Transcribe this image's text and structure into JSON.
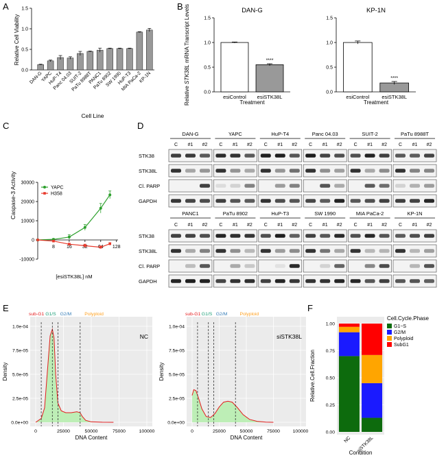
{
  "panels": {
    "A": {
      "letter": "A",
      "chart_data": {
        "type": "bar",
        "title": "",
        "xlabel": "Cell Line",
        "ylabel": "Relative Cell Viability",
        "ylim": [
          0,
          1.5
        ],
        "yticks": [
          "0.0",
          "0.5",
          "1.0",
          "1.5"
        ],
        "categories": [
          "DAN-G",
          "YAPC",
          "HuP-T4",
          "Panc 04.03",
          "SUIT-2",
          "PaTu 8988T",
          "PANC1",
          "PaTu 8902",
          "SW 1990",
          "HuP-T3",
          "MIA PaCa-2",
          "KP-1N"
        ],
        "values": [
          0.13,
          0.22,
          0.3,
          0.29,
          0.4,
          0.45,
          0.48,
          0.52,
          0.52,
          0.52,
          0.92,
          0.97
        ],
        "errors": [
          0.01,
          0.02,
          0.05,
          0.03,
          0.05,
          0.01,
          0.05,
          0.01,
          0.01,
          0.01,
          0.01,
          0.04
        ],
        "bar_color": "#999999"
      }
    },
    "B": {
      "letter": "B",
      "ylabel_pre": "Relative ",
      "ylabel_gene": "STK38L",
      "ylabel_post": " mRNA Transcript Levels",
      "chart_data": [
        {
          "type": "bar",
          "title": "DAN-G",
          "xlabel": "Treatment",
          "ylim": [
            0,
            1.5
          ],
          "yticks": [
            "0.0",
            "0.5",
            "1.0",
            "1.5"
          ],
          "categories": [
            "esiControl",
            "esiSTK38L"
          ],
          "values": [
            1.0,
            0.55
          ],
          "errors": [
            0.01,
            0.02
          ],
          "colors": [
            "#ffffff",
            "#999999"
          ],
          "annotation": "****"
        },
        {
          "type": "bar",
          "title": "KP-1N",
          "xlabel": "Treatment",
          "ylim": [
            0,
            1.5
          ],
          "yticks": [
            "0.0",
            "0.5",
            "1.0",
            "1.5"
          ],
          "categories": [
            "esiControl",
            "esiSTK38L"
          ],
          "values": [
            1.0,
            0.18
          ],
          "errors": [
            0.03,
            0.03
          ],
          "colors": [
            "#ffffff",
            "#999999"
          ],
          "annotation": "****"
        }
      ]
    },
    "C": {
      "letter": "C",
      "chart_data": {
        "type": "line",
        "xlabel": "[esiSTK38L] nM",
        "ylabel": "Caspase-3 Activity",
        "ylim": [
          -10000,
          30000
        ],
        "yticks": [
          "-10000",
          "0",
          "10000",
          "20000",
          "30000"
        ],
        "xticks": [
          "8",
          "16",
          "32",
          "64",
          "128"
        ],
        "x": [
          4,
          8,
          16,
          32,
          64,
          96
        ],
        "series": [
          {
            "name": "YAPC",
            "color": "#2ca02c",
            "values": [
              0,
              300,
              1500,
              6500,
              16500,
              23500
            ],
            "errors": [
              0,
              400,
              1200,
              1500,
              2500,
              2000
            ]
          },
          {
            "name": "H358",
            "color": "#e8392b",
            "values": [
              0,
              -600,
              -2200,
              -3000,
              -3800,
              -2000
            ],
            "errors": [
              0,
              300,
              500,
              800,
              700,
              600
            ]
          }
        ]
      }
    },
    "D": {
      "letter": "D",
      "row_labels": [
        "STK38",
        "STK38L",
        "Cl. PARP",
        "GAPDH"
      ],
      "lane_labels": [
        "C",
        "#1",
        "#2"
      ],
      "top_lines": [
        "DAN-G",
        "YAPC",
        "HuP-T4",
        "Panc 04.03",
        "SUIT-2",
        "PaTu 8988T"
      ],
      "bottom_lines": [
        "PANC1",
        "PaTu 8902",
        "HuP-T3",
        "SW 1990",
        "MIA PaCa-2",
        "KP-1N"
      ]
    },
    "E": {
      "letter": "E",
      "chart_data": [
        {
          "type": "area",
          "label": "NC",
          "xlabel": "DNA Content",
          "ylabel": "Density",
          "xlim": [
            0,
            100000
          ],
          "ylim": [
            0,
            0.0001
          ],
          "xticks": [
            "0",
            "25000",
            "50000",
            "75000",
            "100000"
          ],
          "yticks": [
            "0.0e+00",
            "2.5e-05",
            "5.0e-05",
            "7.5e-05",
            "1.0e-04"
          ],
          "x": [
            0,
            5000,
            8000,
            11000,
            13000,
            15000,
            16500,
            18000,
            20000,
            23000,
            27000,
            32000,
            37000,
            40000,
            42000,
            45000,
            50000,
            60000,
            70000
          ],
          "values": [
            0,
            4e-06,
            1.5e-05,
            6e-05,
            9e-05,
            9.7e-05,
            8.8e-05,
            5e-05,
            2e-05,
            1.2e-05,
            1e-05,
            1e-05,
            1.1e-05,
            1e-05,
            6e-06,
            2e-06,
            5e-07,
            1e-07,
            0
          ],
          "phase_lines": [
            5000,
            15000,
            20000,
            40000
          ],
          "phase_labels": [
            "sub-G1",
            "G1/S",
            "G2/M",
            "Polyploid"
          ],
          "phase_colors": [
            "#e41a1c",
            "#1b9e77",
            "#377eb8",
            "#ff9f1c"
          ]
        },
        {
          "type": "area",
          "label": "siSTK38L",
          "xlabel": "DNA Content",
          "ylabel": "",
          "xlim": [
            0,
            100000
          ],
          "ylim": [
            0,
            0.0001
          ],
          "xticks": [
            "0",
            "25000",
            "50000",
            "75000",
            "100000"
          ],
          "yticks": [
            "0.0e+00",
            "2.5e-05",
            "5.0e-05",
            "7.5e-05",
            "1.0e-04"
          ],
          "x": [
            0,
            1500,
            3500,
            6000,
            9000,
            13000,
            17000,
            21000,
            25000,
            29000,
            33000,
            37000,
            42000,
            47000,
            53000,
            60000,
            68000,
            75000
          ],
          "values": [
            2.8e-05,
            3.4e-05,
            3.3e-05,
            2.5e-05,
            1.4e-05,
            6e-06,
            5e-06,
            9e-06,
            1.6e-05,
            2.1e-05,
            2.2e-05,
            2.1e-05,
            1.5e-05,
            8e-06,
            3e-06,
            1e-06,
            2e-07,
            0
          ],
          "phase_lines": [
            5000,
            15000,
            20000,
            40000
          ],
          "phase_labels": [
            "sub-G1",
            "G1/S",
            "G2/M",
            "Polyploid"
          ],
          "phase_colors": [
            "#e41a1c",
            "#1b9e77",
            "#377eb8",
            "#ff9f1c"
          ]
        }
      ]
    },
    "F": {
      "letter": "F",
      "chart_data": {
        "type": "bar",
        "stacked": true,
        "xlabel": "Condition",
        "ylabel": "Relative.Cell.Fraction",
        "ylim": [
          0,
          1
        ],
        "yticks": [
          "0.00",
          "0.25",
          "0.50",
          "0.75",
          "1.00"
        ],
        "categories": [
          "NC",
          "siSTK38L"
        ],
        "legend_title": "Cell.Cycle.Phase",
        "series": [
          {
            "name": "G1~S",
            "color": "#0d6b0d",
            "values": [
              0.7,
              0.13
            ]
          },
          {
            "name": "G2/M",
            "color": "#1a1aff",
            "values": [
              0.22,
              0.32
            ]
          },
          {
            "name": "Polyploid",
            "color": "#ffa500",
            "values": [
              0.05,
              0.26
            ]
          },
          {
            "name": "SubG1",
            "color": "#ff0000",
            "values": [
              0.03,
              0.29
            ]
          }
        ]
      }
    }
  }
}
